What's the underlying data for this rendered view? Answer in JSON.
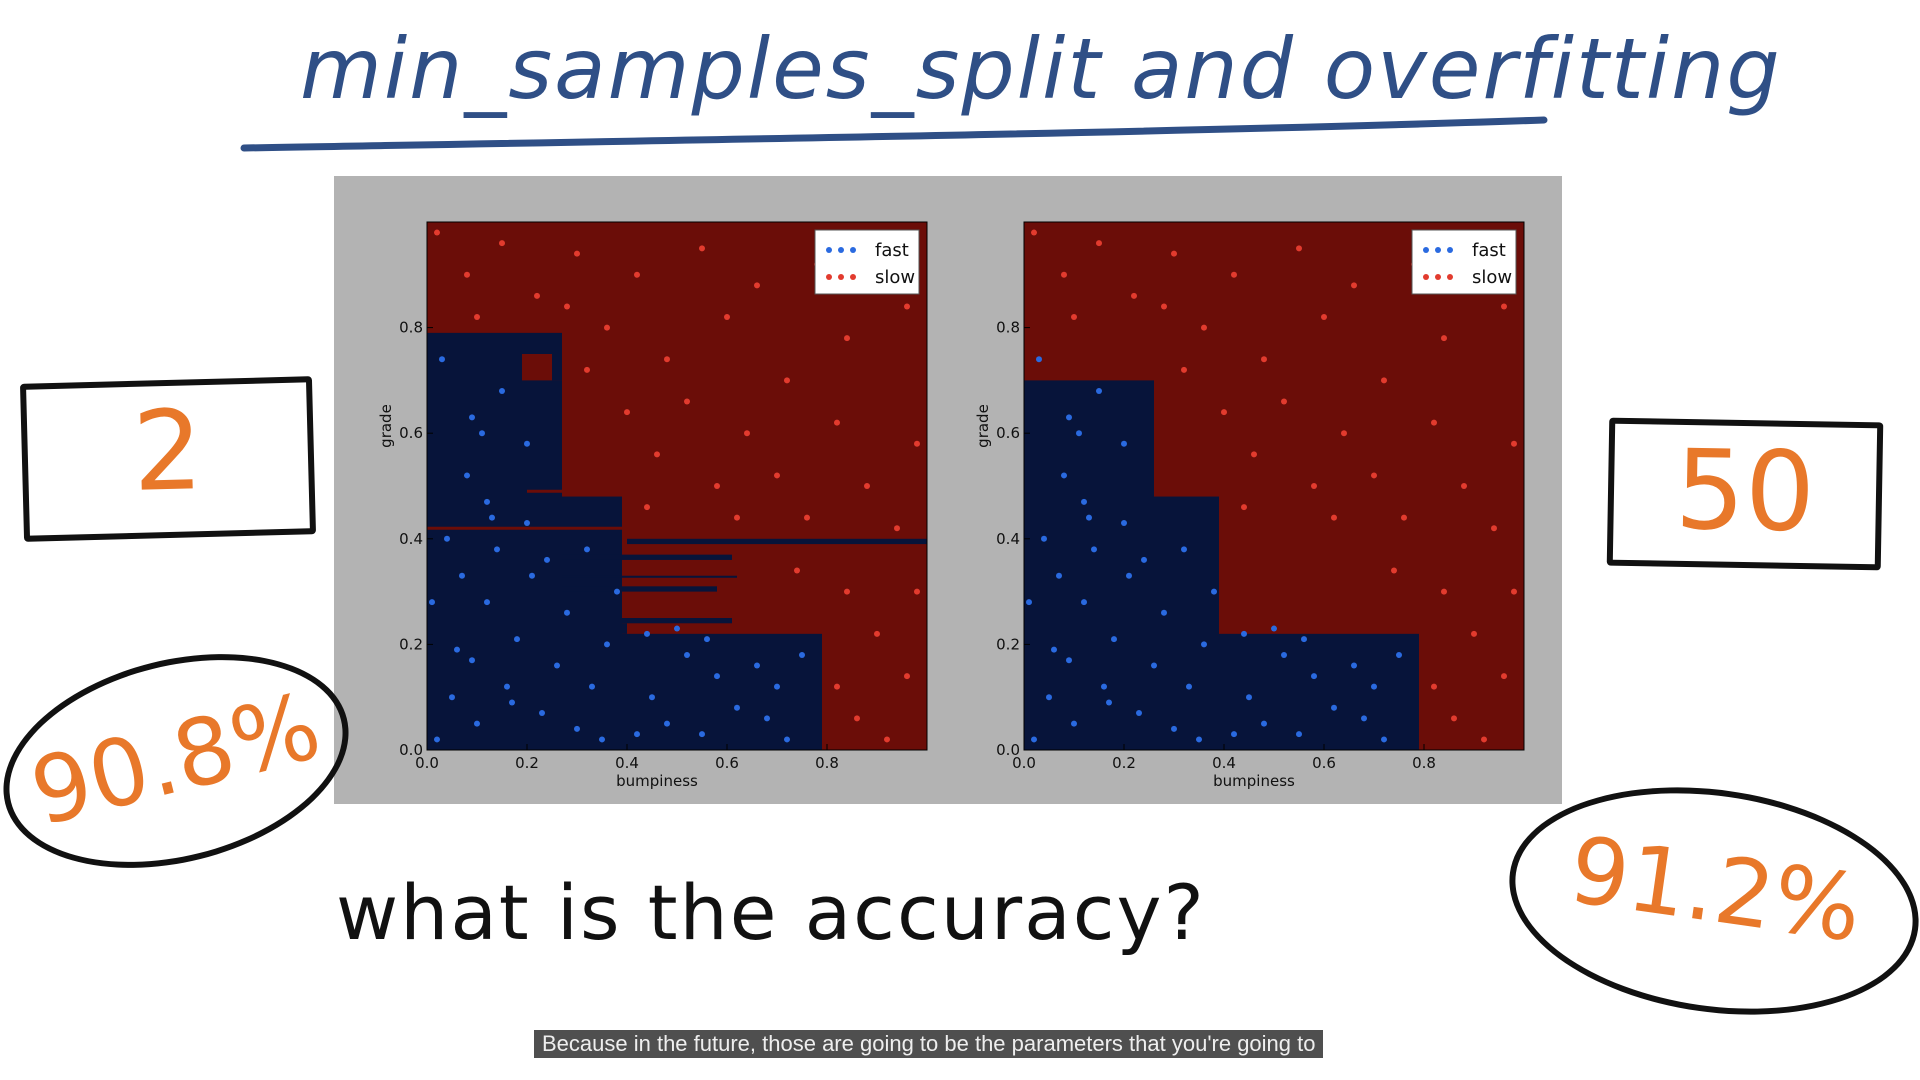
{
  "title": "min_samples_split and overfitting",
  "question": "what is the accuracy?",
  "caption": "Because in the future, those are going to be the parameters that you're going to",
  "left": {
    "param_value": "2",
    "accuracy": "90.8%"
  },
  "right": {
    "param_value": "50",
    "accuracy": "91.2%"
  },
  "colors": {
    "title": "#2f4f86",
    "handwriting_accent": "#e8782a",
    "fast_region": "#07143a",
    "slow_region": "#6b0d08",
    "fast_points": "#2a6ae0",
    "slow_points": "#e23b2e",
    "panel_bg": "#b3b3b3"
  },
  "chart_data": [
    {
      "type": "scatter",
      "title": "",
      "xlabel": "bumpiness",
      "ylabel": "grade",
      "xlim": [
        0.0,
        1.0
      ],
      "ylim": [
        0.0,
        1.0
      ],
      "xticks": [
        "0.0",
        "0.2",
        "0.4",
        "0.6",
        "0.8"
      ],
      "yticks": [
        "0.0",
        "0.2",
        "0.4",
        "0.6",
        "0.8"
      ],
      "legend": {
        "position": "top-right",
        "entries": [
          "fast",
          "slow"
        ]
      },
      "fast_regions": [
        [
          0.0,
          0.0,
          0.79,
          0.22
        ],
        [
          0.0,
          0.22,
          0.4,
          0.24
        ],
        [
          0.0,
          0.24,
          0.61,
          0.25
        ],
        [
          0.0,
          0.0,
          0.39,
          0.48
        ],
        [
          0.0,
          0.3,
          0.58,
          0.31
        ],
        [
          0.0,
          0.33,
          0.62,
          0.33
        ],
        [
          0.0,
          0.36,
          0.61,
          0.37
        ],
        [
          0.4,
          0.39,
          1.0,
          0.4
        ],
        [
          0.0,
          0.0,
          0.27,
          0.7
        ],
        [
          0.0,
          0.0,
          0.19,
          0.79
        ],
        [
          0.19,
          0.75,
          0.25,
          0.79
        ],
        [
          0.25,
          0.7,
          0.27,
          0.79
        ]
      ],
      "slow_lines": [
        [
          0.0,
          0.42,
          0.39,
          0.42
        ],
        [
          0.2,
          0.49,
          0.27,
          0.49
        ]
      ],
      "series": [
        {
          "name": "fast",
          "color": "#2a6ae0",
          "points": [
            [
              0.02,
              0.02
            ],
            [
              0.05,
              0.1
            ],
            [
              0.06,
              0.19
            ],
            [
              0.09,
              0.17
            ],
            [
              0.1,
              0.05
            ],
            [
              0.12,
              0.28
            ],
            [
              0.14,
              0.38
            ],
            [
              0.16,
              0.12
            ],
            [
              0.18,
              0.21
            ],
            [
              0.21,
              0.33
            ],
            [
              0.23,
              0.07
            ],
            [
              0.26,
              0.16
            ],
            [
              0.28,
              0.26
            ],
            [
              0.3,
              0.04
            ],
            [
              0.33,
              0.12
            ],
            [
              0.36,
              0.2
            ],
            [
              0.38,
              0.3
            ],
            [
              0.04,
              0.4
            ],
            [
              0.08,
              0.52
            ],
            [
              0.11,
              0.6
            ],
            [
              0.15,
              0.68
            ],
            [
              0.03,
              0.74
            ],
            [
              0.12,
              0.47
            ],
            [
              0.2,
              0.43
            ],
            [
              0.45,
              0.1
            ],
            [
              0.48,
              0.05
            ],
            [
              0.52,
              0.18
            ],
            [
              0.55,
              0.03
            ],
            [
              0.58,
              0.14
            ],
            [
              0.62,
              0.08
            ],
            [
              0.66,
              0.16
            ],
            [
              0.68,
              0.06
            ],
            [
              0.7,
              0.12
            ],
            [
              0.72,
              0.02
            ],
            [
              0.75,
              0.18
            ],
            [
              0.44,
              0.22
            ],
            [
              0.5,
              0.23
            ],
            [
              0.56,
              0.21
            ],
            [
              0.01,
              0.28
            ],
            [
              0.07,
              0.33
            ],
            [
              0.17,
              0.09
            ],
            [
              0.24,
              0.36
            ],
            [
              0.32,
              0.38
            ],
            [
              0.35,
              0.02
            ],
            [
              0.42,
              0.03
            ],
            [
              0.09,
              0.63
            ],
            [
              0.2,
              0.58
            ],
            [
              0.13,
              0.44
            ]
          ]
        },
        {
          "name": "slow",
          "color": "#e23b2e",
          "points": [
            [
              0.02,
              0.98
            ],
            [
              0.08,
              0.9
            ],
            [
              0.15,
              0.96
            ],
            [
              0.22,
              0.86
            ],
            [
              0.3,
              0.94
            ],
            [
              0.36,
              0.8
            ],
            [
              0.42,
              0.9
            ],
            [
              0.48,
              0.74
            ],
            [
              0.55,
              0.95
            ],
            [
              0.6,
              0.82
            ],
            [
              0.66,
              0.88
            ],
            [
              0.72,
              0.7
            ],
            [
              0.78,
              0.92
            ],
            [
              0.84,
              0.78
            ],
            [
              0.9,
              0.96
            ],
            [
              0.96,
              0.84
            ],
            [
              0.4,
              0.64
            ],
            [
              0.46,
              0.56
            ],
            [
              0.52,
              0.66
            ],
            [
              0.58,
              0.5
            ],
            [
              0.64,
              0.6
            ],
            [
              0.7,
              0.52
            ],
            [
              0.76,
              0.44
            ],
            [
              0.82,
              0.62
            ],
            [
              0.88,
              0.5
            ],
            [
              0.94,
              0.42
            ],
            [
              0.98,
              0.58
            ],
            [
              0.84,
              0.3
            ],
            [
              0.9,
              0.22
            ],
            [
              0.96,
              0.14
            ],
            [
              0.86,
              0.06
            ],
            [
              0.92,
              0.02
            ],
            [
              0.82,
              0.12
            ],
            [
              0.98,
              0.3
            ],
            [
              0.32,
              0.72
            ],
            [
              0.28,
              0.84
            ],
            [
              0.44,
              0.46
            ],
            [
              0.62,
              0.44
            ],
            [
              0.74,
              0.34
            ],
            [
              0.1,
              0.82
            ]
          ]
        }
      ]
    },
    {
      "type": "scatter",
      "title": "",
      "xlabel": "bumpiness",
      "ylabel": "grade",
      "xlim": [
        0.0,
        1.0
      ],
      "ylim": [
        0.0,
        1.0
      ],
      "xticks": [
        "0.0",
        "0.2",
        "0.4",
        "0.6",
        "0.8"
      ],
      "yticks": [
        "0.0",
        "0.2",
        "0.4",
        "0.6",
        "0.8"
      ],
      "legend": {
        "position": "top-right",
        "entries": [
          "fast",
          "slow"
        ]
      },
      "fast_regions": [
        [
          0.0,
          0.0,
          0.79,
          0.22
        ],
        [
          0.0,
          0.0,
          0.39,
          0.48
        ],
        [
          0.0,
          0.0,
          0.26,
          0.7
        ]
      ],
      "slow_lines": [],
      "series": [
        {
          "name": "fast",
          "color": "#2a6ae0",
          "points": [
            [
              0.02,
              0.02
            ],
            [
              0.05,
              0.1
            ],
            [
              0.06,
              0.19
            ],
            [
              0.09,
              0.17
            ],
            [
              0.1,
              0.05
            ],
            [
              0.12,
              0.28
            ],
            [
              0.14,
              0.38
            ],
            [
              0.16,
              0.12
            ],
            [
              0.18,
              0.21
            ],
            [
              0.21,
              0.33
            ],
            [
              0.23,
              0.07
            ],
            [
              0.26,
              0.16
            ],
            [
              0.28,
              0.26
            ],
            [
              0.3,
              0.04
            ],
            [
              0.33,
              0.12
            ],
            [
              0.36,
              0.2
            ],
            [
              0.38,
              0.3
            ],
            [
              0.04,
              0.4
            ],
            [
              0.08,
              0.52
            ],
            [
              0.11,
              0.6
            ],
            [
              0.15,
              0.68
            ],
            [
              0.03,
              0.74
            ],
            [
              0.12,
              0.47
            ],
            [
              0.2,
              0.43
            ],
            [
              0.45,
              0.1
            ],
            [
              0.48,
              0.05
            ],
            [
              0.52,
              0.18
            ],
            [
              0.55,
              0.03
            ],
            [
              0.58,
              0.14
            ],
            [
              0.62,
              0.08
            ],
            [
              0.66,
              0.16
            ],
            [
              0.68,
              0.06
            ],
            [
              0.7,
              0.12
            ],
            [
              0.72,
              0.02
            ],
            [
              0.75,
              0.18
            ],
            [
              0.44,
              0.22
            ],
            [
              0.5,
              0.23
            ],
            [
              0.56,
              0.21
            ],
            [
              0.01,
              0.28
            ],
            [
              0.07,
              0.33
            ],
            [
              0.17,
              0.09
            ],
            [
              0.24,
              0.36
            ],
            [
              0.32,
              0.38
            ],
            [
              0.35,
              0.02
            ],
            [
              0.42,
              0.03
            ],
            [
              0.09,
              0.63
            ],
            [
              0.2,
              0.58
            ],
            [
              0.13,
              0.44
            ]
          ]
        },
        {
          "name": "slow",
          "color": "#e23b2e",
          "points": [
            [
              0.02,
              0.98
            ],
            [
              0.08,
              0.9
            ],
            [
              0.15,
              0.96
            ],
            [
              0.22,
              0.86
            ],
            [
              0.3,
              0.94
            ],
            [
              0.36,
              0.8
            ],
            [
              0.42,
              0.9
            ],
            [
              0.48,
              0.74
            ],
            [
              0.55,
              0.95
            ],
            [
              0.6,
              0.82
            ],
            [
              0.66,
              0.88
            ],
            [
              0.72,
              0.7
            ],
            [
              0.78,
              0.92
            ],
            [
              0.84,
              0.78
            ],
            [
              0.9,
              0.96
            ],
            [
              0.96,
              0.84
            ],
            [
              0.4,
              0.64
            ],
            [
              0.46,
              0.56
            ],
            [
              0.52,
              0.66
            ],
            [
              0.58,
              0.5
            ],
            [
              0.64,
              0.6
            ],
            [
              0.7,
              0.52
            ],
            [
              0.76,
              0.44
            ],
            [
              0.82,
              0.62
            ],
            [
              0.88,
              0.5
            ],
            [
              0.94,
              0.42
            ],
            [
              0.98,
              0.58
            ],
            [
              0.84,
              0.3
            ],
            [
              0.9,
              0.22
            ],
            [
              0.96,
              0.14
            ],
            [
              0.86,
              0.06
            ],
            [
              0.92,
              0.02
            ],
            [
              0.82,
              0.12
            ],
            [
              0.98,
              0.3
            ],
            [
              0.32,
              0.72
            ],
            [
              0.28,
              0.84
            ],
            [
              0.44,
              0.46
            ],
            [
              0.62,
              0.44
            ],
            [
              0.74,
              0.34
            ],
            [
              0.1,
              0.82
            ]
          ]
        }
      ]
    }
  ]
}
